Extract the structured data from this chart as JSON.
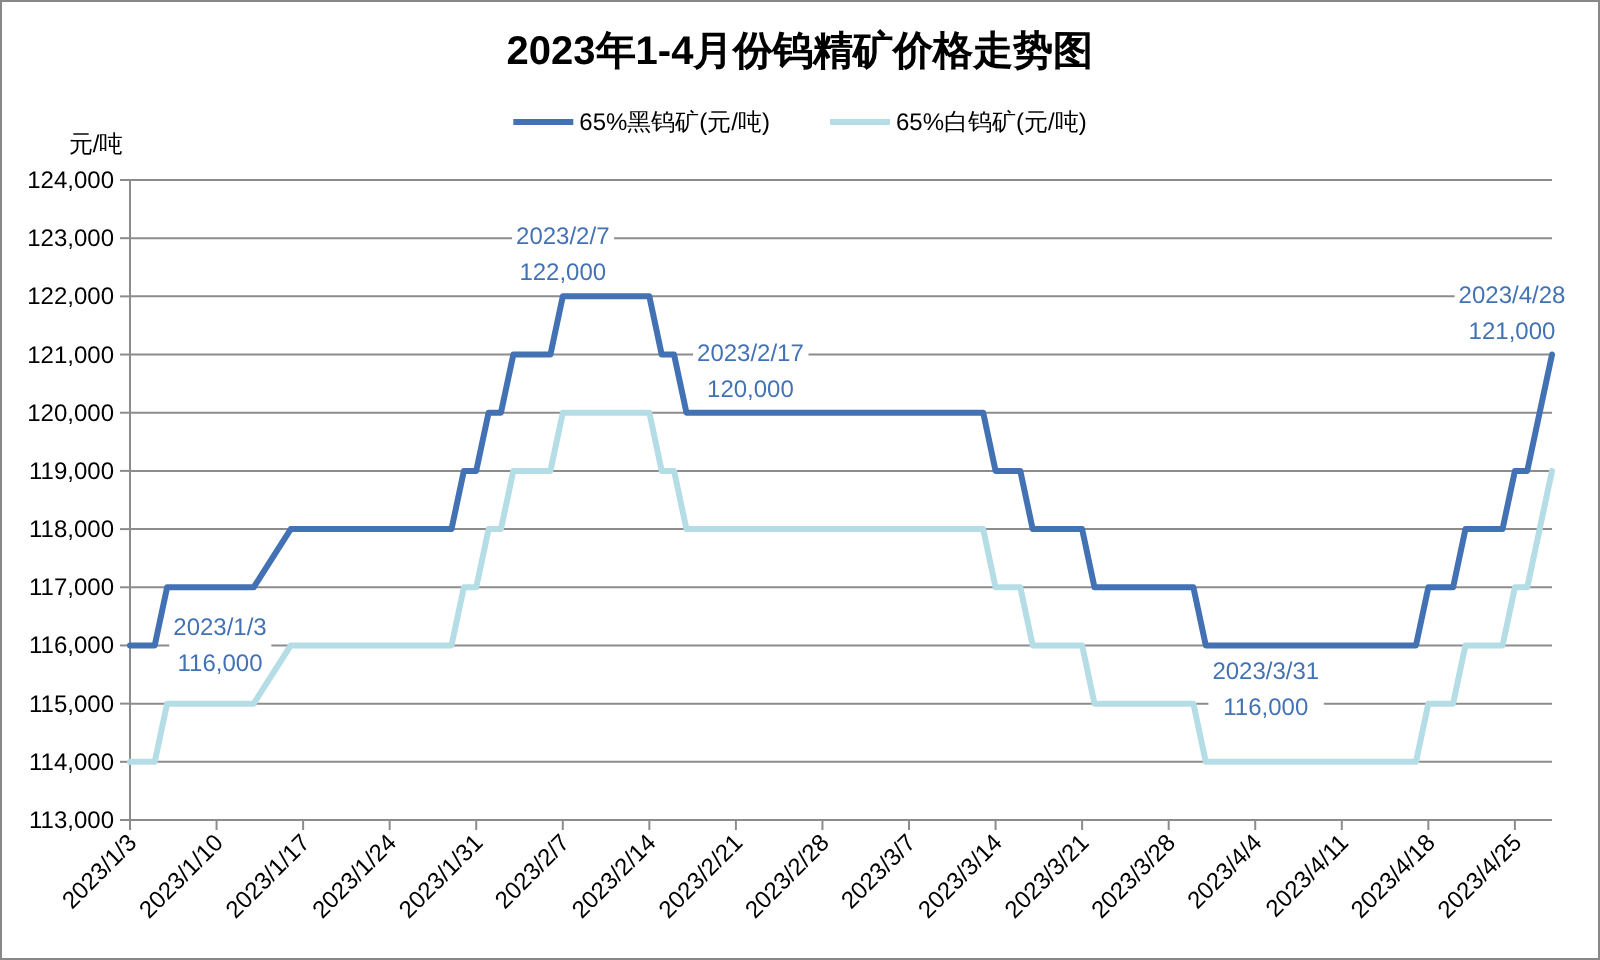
{
  "chart_data": {
    "type": "line",
    "title": "2023年1-4月份钨精矿价格走势图",
    "ylabel": "元/吨",
    "legend": "top",
    "grid": "y",
    "marker": "none",
    "line_style": "solid",
    "xlim": [
      "2023-01-03",
      "2023-04-28"
    ],
    "xticks": [
      {
        "value": "2023-01-03",
        "label": "2023/1/3"
      },
      {
        "value": "2023-01-10",
        "label": "2023/1/10"
      },
      {
        "value": "2023-01-17",
        "label": "2023/1/17"
      },
      {
        "value": "2023-01-24",
        "label": "2023/1/24"
      },
      {
        "value": "2023-01-31",
        "label": "2023/1/31"
      },
      {
        "value": "2023-02-07",
        "label": "2023/2/7"
      },
      {
        "value": "2023-02-14",
        "label": "2023/2/14"
      },
      {
        "value": "2023-02-21",
        "label": "2023/2/21"
      },
      {
        "value": "2023-02-28",
        "label": "2023/2/28"
      },
      {
        "value": "2023-03-07",
        "label": "2023/3/7"
      },
      {
        "value": "2023-03-14",
        "label": "2023/3/14"
      },
      {
        "value": "2023-03-21",
        "label": "2023/3/21"
      },
      {
        "value": "2023-03-28",
        "label": "2023/3/28"
      },
      {
        "value": "2023-04-04",
        "label": "2023/4/4"
      },
      {
        "value": "2023-04-11",
        "label": "2023/4/11"
      },
      {
        "value": "2023-04-18",
        "label": "2023/4/18"
      },
      {
        "value": "2023-04-25",
        "label": "2023/4/25"
      }
    ],
    "ylim": [
      113000,
      124000
    ],
    "yticks": [
      {
        "value": 113000,
        "label": "113,000"
      },
      {
        "value": 114000,
        "label": "114,000"
      },
      {
        "value": 115000,
        "label": "115,000"
      },
      {
        "value": 116000,
        "label": "116,000"
      },
      {
        "value": 117000,
        "label": "117,000"
      },
      {
        "value": 118000,
        "label": "118,000"
      },
      {
        "value": 119000,
        "label": "119,000"
      },
      {
        "value": 120000,
        "label": "120,000"
      },
      {
        "value": 121000,
        "label": "121,000"
      },
      {
        "value": 122000,
        "label": "122,000"
      },
      {
        "value": 123000,
        "label": "123,000"
      },
      {
        "value": 124000,
        "label": "124,000"
      }
    ],
    "x": [
      "2023-01-03",
      "2023-01-05",
      "2023-01-06",
      "2023-01-13",
      "2023-01-16",
      "2023-01-29",
      "2023-01-30",
      "2023-01-31",
      "2023-02-01",
      "2023-02-02",
      "2023-02-03",
      "2023-02-06",
      "2023-02-07",
      "2023-02-14",
      "2023-02-15",
      "2023-02-16",
      "2023-02-17",
      "2023-03-13",
      "2023-03-14",
      "2023-03-16",
      "2023-03-17",
      "2023-03-21",
      "2023-03-22",
      "2023-03-30",
      "2023-03-31",
      "2023-04-17",
      "2023-04-18",
      "2023-04-20",
      "2023-04-21",
      "2023-04-24",
      "2023-04-25",
      "2023-04-26",
      "2023-04-27",
      "2023-04-28"
    ],
    "series": [
      {
        "name": "65%黑钨矿(元/吨)",
        "color": "#4372b4",
        "values": [
          116000,
          116000,
          117000,
          117000,
          118000,
          118000,
          119000,
          119000,
          120000,
          120000,
          121000,
          121000,
          122000,
          122000,
          121000,
          121000,
          120000,
          120000,
          119000,
          119000,
          118000,
          118000,
          117000,
          117000,
          116000,
          116000,
          117000,
          117000,
          118000,
          118000,
          119000,
          119000,
          120000,
          121000
        ]
      },
      {
        "name": "65%白钨矿(元/吨)",
        "color": "#b4dde6",
        "values": [
          114000,
          114000,
          115000,
          115000,
          116000,
          116000,
          117000,
          117000,
          118000,
          118000,
          119000,
          119000,
          120000,
          120000,
          119000,
          119000,
          118000,
          118000,
          117000,
          117000,
          116000,
          116000,
          115000,
          115000,
          114000,
          114000,
          115000,
          115000,
          116000,
          116000,
          117000,
          117000,
          118000,
          119000
        ]
      }
    ],
    "annotations": [
      {
        "text": "2023/1/3\n116,000",
        "x": "2023-01-03",
        "y": 116000
      },
      {
        "text": "2023/2/7\n122,000",
        "x": "2023-02-07",
        "y": 122000
      },
      {
        "text": "2023/2/17\n120,000",
        "x": "2023-02-17",
        "y": 120000
      },
      {
        "text": "2023/3/31\n116,000",
        "x": "2023-03-31",
        "y": 116000
      },
      {
        "text": "2023/4/28\n121,000",
        "x": "2023-04-28",
        "y": 121000
      }
    ]
  }
}
